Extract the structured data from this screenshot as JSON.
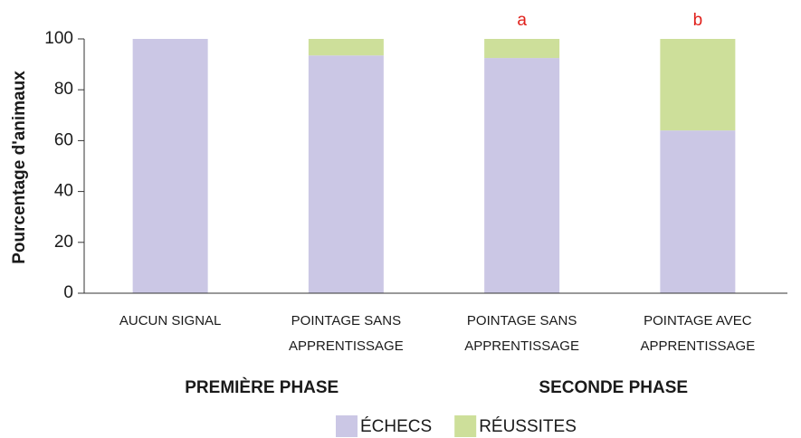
{
  "chart_data": {
    "type": "stacked_bar",
    "y_label": "Pourcentage d'animaux",
    "categories": [
      [
        "AUCUN SIGNAL"
      ],
      [
        "POINTAGE SANS",
        "APPRENTISSAGE"
      ],
      [
        "POINTAGE SANS",
        "APPRENTISSAGE"
      ],
      [
        "POINTAGE AVEC",
        "APPRENTISSAGE"
      ]
    ],
    "series": [
      {
        "name": "ÉCHECS",
        "color": "#cbc7e5",
        "values": [
          100,
          93.5,
          92.5,
          64
        ]
      },
      {
        "name": "RÉUSSITES",
        "color": "#cddf9a",
        "values": [
          0,
          6.5,
          7.5,
          36
        ]
      }
    ],
    "annotations": [
      null,
      null,
      "a",
      "b"
    ],
    "annotation_color": "#e0201b",
    "groups": [
      "PREMIÈRE PHASE",
      "SECONDE PHASE"
    ],
    "ylim": [
      0,
      100
    ],
    "yticks": [
      0,
      20,
      40,
      60,
      80,
      100
    ],
    "legend": "bottom"
  }
}
